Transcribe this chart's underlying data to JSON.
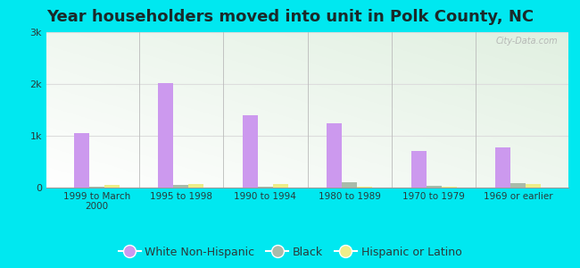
{
  "title": "Year householders moved into unit in Polk County, NC",
  "categories": [
    "1999 to March\n2000",
    "1995 to 1998",
    "1990 to 1994",
    "1980 to 1989",
    "1970 to 1979",
    "1969 or earlier"
  ],
  "white_non_hispanic": [
    1050,
    2020,
    1400,
    1250,
    700,
    780
  ],
  "black": [
    10,
    60,
    20,
    100,
    30,
    80
  ],
  "hispanic_or_latino": [
    60,
    70,
    70,
    10,
    20,
    70
  ],
  "white_color": "#cc99ee",
  "black_color": "#aabbaa",
  "hispanic_color": "#eeee88",
  "ylim": [
    0,
    3000
  ],
  "yticks": [
    0,
    1000,
    2000,
    3000
  ],
  "ytick_labels": [
    "0",
    "1k",
    "2k",
    "3k"
  ],
  "background_outer": "#00e8f0",
  "grid_color": "#dddddd",
  "title_fontsize": 13,
  "legend_fontsize": 9,
  "watermark": "City-Data.com"
}
